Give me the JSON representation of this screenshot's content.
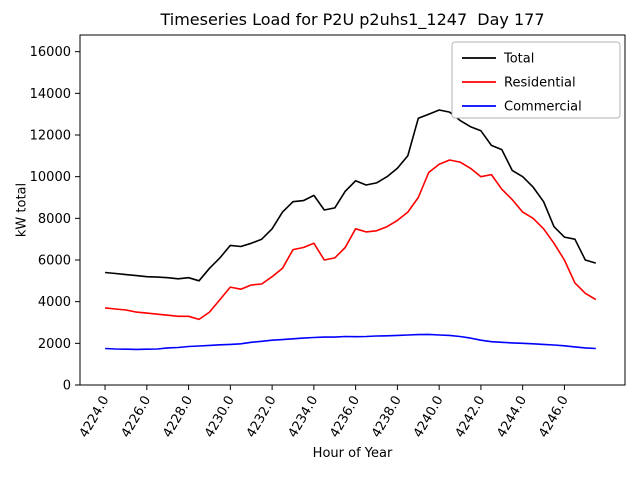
{
  "title": "Timeseries Load for P2U p2uhs1_1247  Day 177",
  "chart_data": {
    "type": "line",
    "title": "Timeseries Load for P2U p2uhs1_1247  Day 177",
    "xlabel": "Hour of Year",
    "ylabel": "kW total",
    "xlim": [
      4222.8,
      4248.9
    ],
    "ylim": [
      0,
      16800
    ],
    "grid": false,
    "legend_position": "upper right",
    "xticks": [
      4224,
      4226,
      4228,
      4230,
      4232,
      4234,
      4236,
      4238,
      4240,
      4242,
      4244,
      4246
    ],
    "xtick_labels": [
      "4224.0",
      "4226.0",
      "4228.0",
      "4230.0",
      "4232.0",
      "4234.0",
      "4236.0",
      "4238.0",
      "4240.0",
      "4242.0",
      "4244.0",
      "4246.0"
    ],
    "yticks": [
      0,
      2000,
      4000,
      6000,
      8000,
      10000,
      12000,
      14000,
      16000
    ],
    "x": [
      4224.0,
      4224.5,
      4225.0,
      4225.5,
      4226.0,
      4226.5,
      4227.0,
      4227.5,
      4228.0,
      4228.5,
      4229.0,
      4229.5,
      4230.0,
      4230.5,
      4231.0,
      4231.5,
      4232.0,
      4232.5,
      4233.0,
      4233.5,
      4234.0,
      4234.5,
      4235.0,
      4235.5,
      4236.0,
      4236.5,
      4237.0,
      4237.5,
      4238.0,
      4238.5,
      4239.0,
      4239.5,
      4240.0,
      4240.5,
      4241.0,
      4241.5,
      4242.0,
      4242.5,
      4243.0,
      4243.5,
      4244.0,
      4244.5,
      4245.0,
      4245.5,
      4246.0,
      4246.5,
      4247.0,
      4247.5
    ],
    "series": [
      {
        "name": "Total",
        "color": "#000000",
        "values": [
          5400,
          5350,
          5300,
          5250,
          5200,
          5180,
          5150,
          5100,
          5150,
          5000,
          5600,
          6100,
          6700,
          6650,
          6800,
          7000,
          7500,
          8300,
          8800,
          8850,
          9100,
          8400,
          8500,
          9300,
          9800,
          9600,
          9700,
          10000,
          10400,
          11000,
          12800,
          13000,
          13200,
          13100,
          12700,
          12400,
          12200,
          11500,
          11300,
          10300,
          10000,
          9500,
          8800,
          7600,
          7100,
          7000,
          6000,
          5850
        ]
      },
      {
        "name": "Residential",
        "color": "#ff0000",
        "values": [
          3700,
          3650,
          3600,
          3500,
          3450,
          3400,
          3350,
          3300,
          3300,
          3150,
          3500,
          4100,
          4700,
          4600,
          4800,
          4850,
          5200,
          5600,
          6500,
          6600,
          6800,
          6000,
          6100,
          6600,
          7500,
          7350,
          7400,
          7600,
          7900,
          8300,
          9000,
          10200,
          10600,
          10800,
          10700,
          10400,
          10000,
          10100,
          9400,
          8900,
          8300,
          8000,
          7500,
          6800,
          6000,
          4900,
          4400,
          4100
        ]
      },
      {
        "name": "Commercial",
        "color": "#0000ff",
        "values": [
          1750,
          1730,
          1720,
          1710,
          1720,
          1730,
          1780,
          1800,
          1850,
          1870,
          1900,
          1930,
          1950,
          1980,
          2050,
          2100,
          2150,
          2180,
          2220,
          2250,
          2280,
          2300,
          2300,
          2330,
          2320,
          2330,
          2350,
          2360,
          2380,
          2400,
          2420,
          2430,
          2400,
          2380,
          2330,
          2250,
          2150,
          2080,
          2050,
          2020,
          2000,
          1980,
          1950,
          1920,
          1880,
          1830,
          1780,
          1750
        ]
      }
    ]
  }
}
